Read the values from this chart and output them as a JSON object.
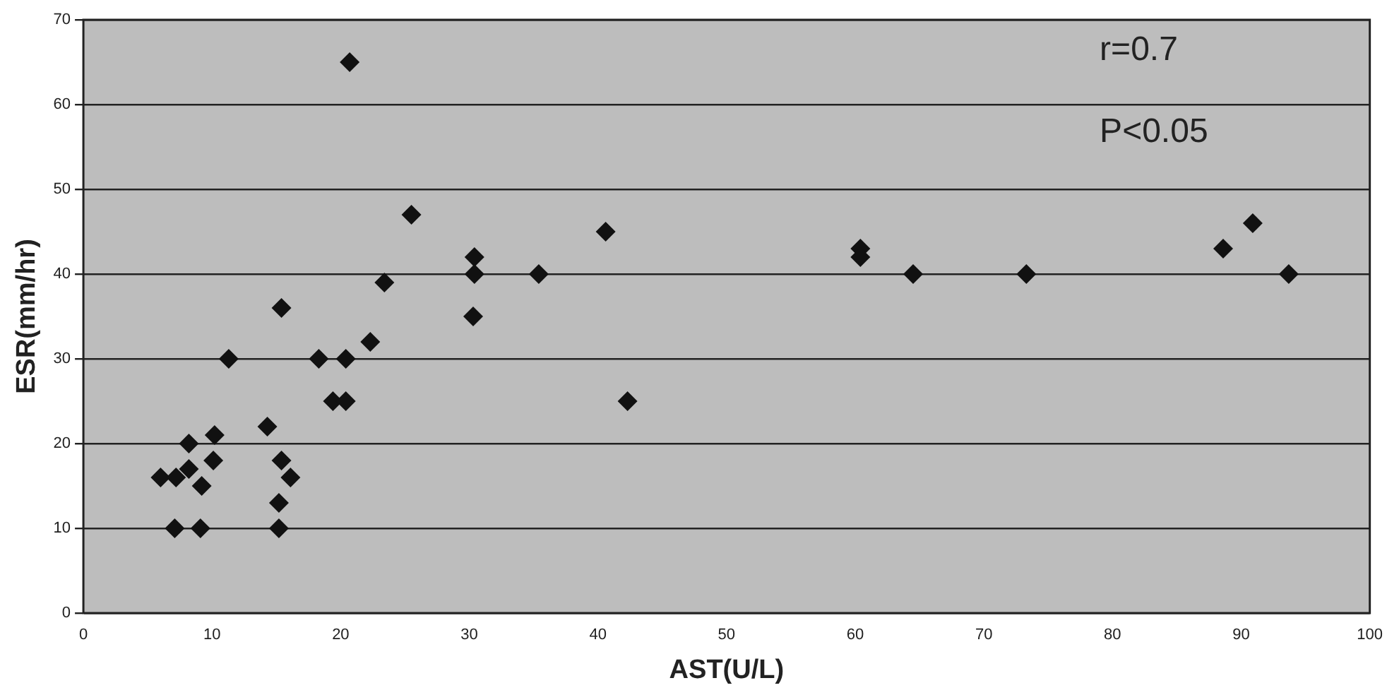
{
  "chart_data": {
    "type": "scatter",
    "xlabel": "AST(U/L)",
    "ylabel": "ESR(mm/hr)",
    "series": [
      {
        "color": "#111111",
        "x": [
          6.0,
          7.2,
          8.2,
          9.2,
          7.1,
          9.1,
          8.2,
          10.2,
          10.1,
          11.3,
          14.3,
          15.4,
          15.4,
          16.1,
          15.2,
          15.2,
          18.3,
          19.4,
          20.4,
          20.4,
          22.3,
          23.4,
          20.7,
          25.5,
          30.4,
          30.4,
          30.3,
          35.4,
          40.6,
          42.3,
          60.4,
          60.4,
          64.5,
          73.3,
          88.6,
          90.9,
          93.7
        ],
        "values": [
          16,
          16,
          17,
          15,
          10,
          10,
          20,
          21,
          18,
          30,
          22,
          36,
          18,
          16,
          13,
          10,
          30,
          25,
          25,
          30,
          32,
          39,
          65,
          47,
          42,
          40,
          35,
          40,
          45,
          25,
          43,
          42,
          40,
          40,
          43,
          46,
          40
        ]
      }
    ],
    "xlim": [
      0,
      100
    ],
    "xticks": [
      0,
      10,
      20,
      30,
      40,
      50,
      60,
      70,
      80,
      90,
      100
    ],
    "ylim": [
      0,
      70
    ],
    "yticks": [
      0,
      10,
      20,
      30,
      40,
      50,
      60,
      70
    ],
    "grid": "y",
    "marker": "diamond",
    "legend": false,
    "annotations": [
      "r=0.7",
      "P<0.05"
    ]
  }
}
